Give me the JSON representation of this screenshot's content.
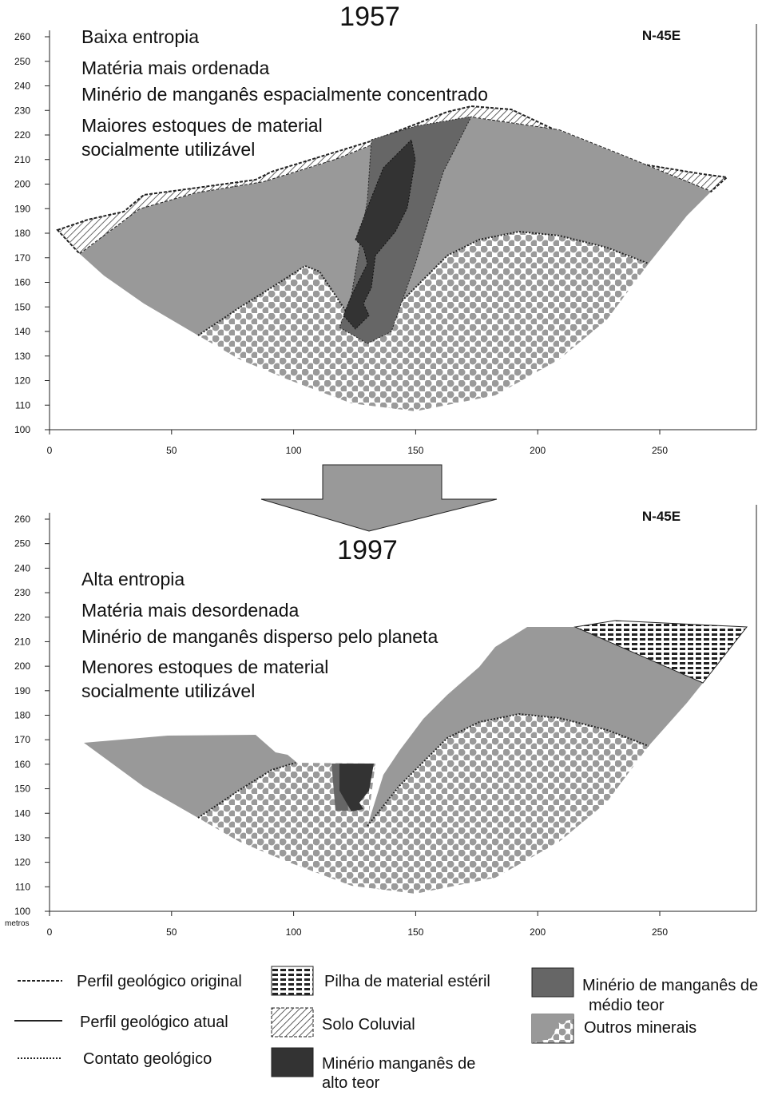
{
  "panels": [
    {
      "year": "1957",
      "orientation": "N-45E",
      "notes": [
        "Baixa entropia",
        "Matéria mais ordenada",
        "Minério de manganês espacialmente concentrado",
        "Maiores estoques de material",
        "socialmente utilizável"
      ],
      "xlim": [
        0,
        290
      ],
      "ylim": [
        100,
        260
      ],
      "xticks": [
        0,
        50,
        100,
        150,
        200,
        250
      ],
      "yticks": [
        100,
        110,
        120,
        130,
        140,
        150,
        160,
        170,
        180,
        190,
        200,
        210,
        220,
        230,
        240,
        250,
        260
      ]
    },
    {
      "year": "1997",
      "orientation": "N-45E",
      "y_unit": "metros",
      "notes": [
        "Alta entropia",
        "Matéria mais desordenada",
        "Minério de manganês disperso pelo planeta",
        "Menores estoques de material",
        "socialmente utilizável"
      ],
      "xlim": [
        0,
        290
      ],
      "ylim": [
        100,
        260
      ],
      "xticks": [
        0,
        50,
        100,
        150,
        200,
        250
      ],
      "yticks": [
        100,
        110,
        120,
        130,
        140,
        150,
        160,
        170,
        180,
        190,
        200,
        210,
        220,
        230,
        240,
        250,
        260
      ]
    }
  ],
  "legend": [
    "Perfil geológico original",
    "Perfil geológico atual",
    "Contato geológico",
    "Pilha de material estéril",
    "Solo Coluvial",
    "Minério manganês de",
    "alto teor",
    "Minério de manganês de",
    "médio teor",
    "Outros minerais"
  ]
}
